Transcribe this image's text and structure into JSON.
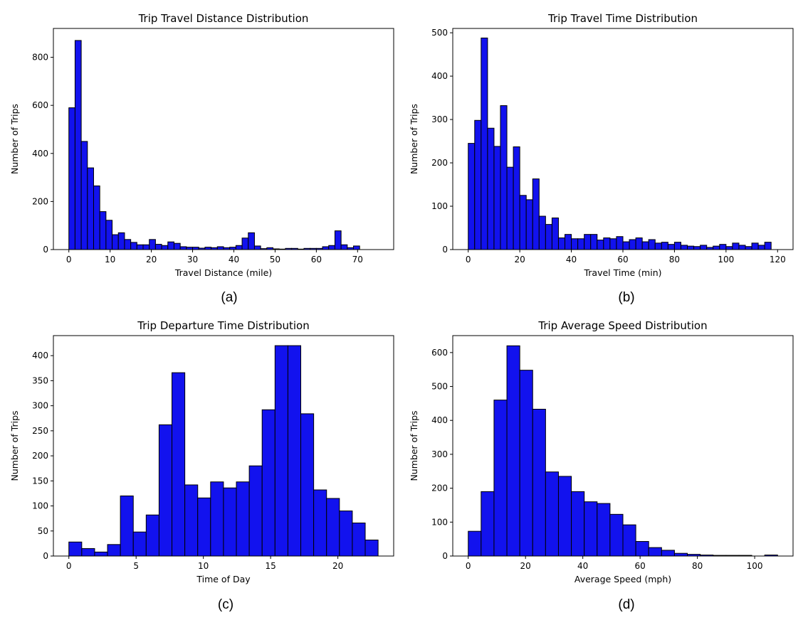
{
  "chart_data": [
    {
      "type": "bar",
      "panel": "(a)",
      "title": "Trip Travel Distance Distribution",
      "xlabel": "Travel Distance (mile)",
      "ylabel": "Number of Trips",
      "xlim": [
        -3.75,
        78.75
      ],
      "ylim": [
        0,
        920
      ],
      "xticks": [
        0,
        10,
        20,
        30,
        40,
        50,
        60,
        70
      ],
      "yticks": [
        0,
        200,
        400,
        600,
        800
      ],
      "bin_start": 0,
      "bin_width": 1.5,
      "values": [
        590,
        870,
        450,
        340,
        265,
        158,
        122,
        62,
        70,
        42,
        30,
        20,
        20,
        42,
        22,
        17,
        32,
        26,
        12,
        10,
        10,
        6,
        10,
        8,
        12,
        8,
        10,
        17,
        48,
        70,
        15,
        4,
        8,
        3,
        2,
        5,
        5,
        2,
        5,
        5,
        5,
        12,
        17,
        78,
        20,
        8,
        15
      ],
      "bar_color": "#1212ee",
      "grid": false
    },
    {
      "type": "bar",
      "panel": "(b)",
      "title": "Trip Travel Time Distribution",
      "xlabel": "Travel Time (min)",
      "ylabel": "Number of Trips",
      "xlim": [
        -6,
        126
      ],
      "ylim": [
        0,
        510
      ],
      "xticks": [
        0,
        20,
        40,
        60,
        80,
        100,
        120
      ],
      "yticks": [
        0,
        100,
        200,
        300,
        400,
        500
      ],
      "bin_start": 0,
      "bin_width": 2.5,
      "values": [
        245,
        298,
        488,
        280,
        238,
        332,
        190,
        237,
        125,
        115,
        163,
        77,
        58,
        73,
        27,
        35,
        25,
        25,
        35,
        35,
        22,
        27,
        25,
        30,
        18,
        23,
        27,
        18,
        23,
        15,
        17,
        12,
        17,
        10,
        8,
        7,
        10,
        5,
        8,
        12,
        7,
        15,
        10,
        7,
        15,
        10,
        17
      ],
      "bar_color": "#1212ee",
      "grid": false
    },
    {
      "type": "bar",
      "panel": "(c)",
      "title": "Trip Departure Time Distribution",
      "xlabel": "Time of Day",
      "ylabel": "Number of Trips",
      "xlim": [
        -1.15,
        24.15
      ],
      "ylim": [
        0,
        440
      ],
      "xticks": [
        0,
        5,
        10,
        15,
        20
      ],
      "yticks": [
        0,
        50,
        100,
        150,
        200,
        250,
        300,
        350,
        400
      ],
      "bin_start": 0,
      "bin_width": 0.958,
      "values": [
        28,
        15,
        8,
        23,
        120,
        48,
        82,
        262,
        366,
        142,
        116,
        148,
        136,
        148,
        180,
        292,
        420,
        420,
        284,
        132,
        115,
        90,
        66,
        32
      ],
      "bar_color": "#1212ee",
      "grid": false
    },
    {
      "type": "bar",
      "panel": "(d)",
      "title": "Trip Average Speed Distribution",
      "xlabel": "Average Speed (mph)",
      "ylabel": "Number of Trips",
      "xlim": [
        -5.4,
        113.4
      ],
      "ylim": [
        0,
        650
      ],
      "xticks": [
        0,
        20,
        40,
        60,
        80,
        100
      ],
      "yticks": [
        0,
        100,
        200,
        300,
        400,
        500,
        600
      ],
      "bin_start": 0,
      "bin_width": 4.5,
      "values": [
        73,
        190,
        460,
        620,
        548,
        433,
        248,
        235,
        190,
        160,
        155,
        123,
        92,
        43,
        25,
        17,
        8,
        5,
        3,
        2,
        2,
        2,
        0,
        3
      ],
      "bar_color": "#1212ee",
      "grid": false
    }
  ],
  "captions": [
    "(a)",
    "(b)",
    "(c)",
    "(d)"
  ]
}
